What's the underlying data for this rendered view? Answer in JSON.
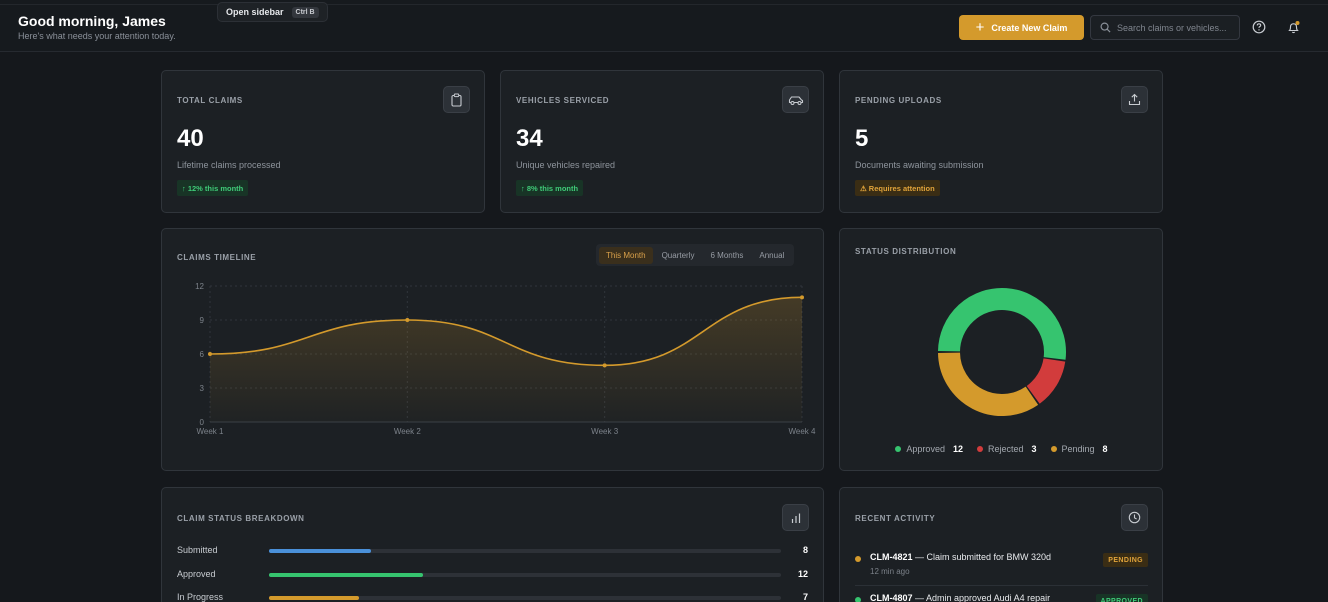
{
  "header": {
    "greeting": "Good morning, James",
    "subtitle": "Here's what needs your attention today.",
    "tooltip": {
      "label": "Open sidebar",
      "shortcut": "Ctrl B"
    },
    "create_button": "Create New Claim",
    "search_placeholder": "Search claims or vehicles...",
    "icons": [
      "help-icon",
      "bell-icon"
    ]
  },
  "stats": [
    {
      "label": "TOTAL CLAIMS",
      "value": "40",
      "desc": "Lifetime claims processed",
      "badge": "↑ 12% this month",
      "badge_tone": "green",
      "icon": "clipboard-icon"
    },
    {
      "label": "VEHICLES SERVICED",
      "value": "34",
      "desc": "Unique vehicles repaired",
      "badge": "↑ 8% this month",
      "badge_tone": "green",
      "icon": "car-icon"
    },
    {
      "label": "PENDING UPLOADS",
      "value": "5",
      "desc": "Documents awaiting submission",
      "badge": "⚠ Requires attention",
      "badge_tone": "amber",
      "icon": "upload-icon"
    }
  ],
  "timeline": {
    "title": "CLAIMS TIMELINE",
    "tabs": [
      {
        "label": "This Month",
        "active": true
      },
      {
        "label": "Quarterly",
        "active": false
      },
      {
        "label": "6 Months",
        "active": false
      },
      {
        "label": "Annual",
        "active": false
      }
    ]
  },
  "chart_data": [
    {
      "type": "area",
      "title": "CLAIMS TIMELINE",
      "categories": [
        "Week 1",
        "Week 2",
        "Week 3",
        "Week 4"
      ],
      "values": [
        6,
        9,
        5,
        11
      ],
      "ylim": [
        0,
        12
      ],
      "yticks": [
        0,
        3,
        6,
        9,
        12
      ],
      "grid": true,
      "color": "#d49a2c"
    },
    {
      "type": "pie",
      "title": "STATUS DISTRIBUTION",
      "categories": [
        "Approved",
        "Rejected",
        "Pending"
      ],
      "values": [
        12,
        3,
        8
      ],
      "colors": [
        "#36c46f",
        "#d23c3c",
        "#d49a2c"
      ],
      "legend": "bottom"
    }
  ],
  "breakdown": {
    "title": "CLAIM STATUS BREAKDOWN",
    "icon": "bar-chart-icon",
    "max": 40,
    "rows": [
      {
        "label": "Submitted",
        "count": "8",
        "value": 8,
        "color": "#4a90d9"
      },
      {
        "label": "Approved",
        "count": "12",
        "value": 12,
        "color": "#36c46f"
      },
      {
        "label": "In Progress",
        "count": "7",
        "value": 7,
        "color": "#d49a2c"
      }
    ]
  },
  "activity": {
    "title": "RECENT ACTIVITY",
    "icon": "clock-icon",
    "items": [
      {
        "id": "CLM-4821",
        "text": " — Claim submitted for BMW 320d",
        "time": "12 min ago",
        "status": "PENDING",
        "color": "#d49a2c"
      },
      {
        "id": "CLM-4807",
        "text": " — Admin approved Audi A4 repair",
        "time": "",
        "status": "APPROVED",
        "color": "#36c46f"
      }
    ]
  }
}
